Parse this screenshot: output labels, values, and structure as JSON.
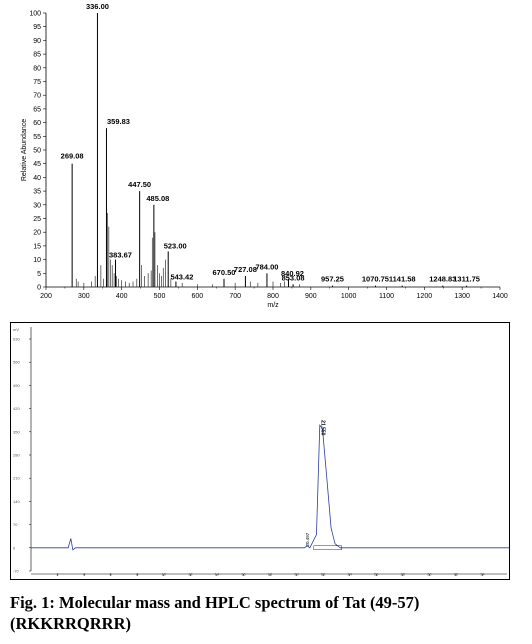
{
  "chart_data": [
    {
      "type": "bar",
      "xlabel": "m/z",
      "ylabel": "Relative Abundance",
      "xlim": [
        200,
        1400
      ],
      "ylim": [
        0,
        100
      ],
      "xticks": [
        "200",
        "300",
        "400",
        "500",
        "600",
        "700",
        "800",
        "900",
        "1000",
        "1100",
        "1200",
        "1300",
        "1400"
      ],
      "yticks": [
        "0",
        "5",
        "10",
        "15",
        "20",
        "25",
        "30",
        "35",
        "40",
        "45",
        "50",
        "55",
        "60",
        "65",
        "70",
        "75",
        "80",
        "85",
        "90",
        "95",
        "100"
      ],
      "peaks": [
        {
          "x": 269.08,
          "y": 45,
          "label": "269.08"
        },
        {
          "x": 336.0,
          "y": 100,
          "label": "336.00"
        },
        {
          "x": 359.83,
          "y": 58,
          "label": "359.83"
        },
        {
          "x": 383.67,
          "y": 10,
          "label": "383.67"
        },
        {
          "x": 447.5,
          "y": 35,
          "label": "447.50"
        },
        {
          "x": 485.08,
          "y": 30,
          "label": "485.08"
        },
        {
          "x": 523.0,
          "y": 13,
          "label": "523.00"
        },
        {
          "x": 543.42,
          "y": 2,
          "label": "543.42"
        },
        {
          "x": 670.5,
          "y": 3,
          "label": "670.50"
        },
        {
          "x": 727.08,
          "y": 4,
          "label": "727.08"
        },
        {
          "x": 784.0,
          "y": 5,
          "label": "784.00"
        },
        {
          "x": 840.92,
          "y": 3,
          "label": "840.92"
        },
        {
          "x": 853.08,
          "y": 1,
          "label": "853.08"
        },
        {
          "x": 957.25,
          "y": 0.5,
          "label": "957.25"
        },
        {
          "x": 1070.75,
          "y": 0.5,
          "label": "1070.75"
        },
        {
          "x": 1141.58,
          "y": 0.5,
          "label": "1141.58"
        },
        {
          "x": 1248.83,
          "y": 0.5,
          "label": "1248.83"
        },
        {
          "x": 1311.75,
          "y": 0.5,
          "label": "1311.75"
        }
      ],
      "minor_peaks": [
        [
          280,
          3
        ],
        [
          285,
          2
        ],
        [
          300,
          1.5
        ],
        [
          320,
          2
        ],
        [
          330,
          4
        ],
        [
          345,
          8
        ],
        [
          352,
          3
        ],
        [
          363,
          27
        ],
        [
          366,
          22
        ],
        [
          370,
          10
        ],
        [
          375,
          8
        ],
        [
          380,
          5
        ],
        [
          386,
          4
        ],
        [
          392,
          3
        ],
        [
          400,
          2.5
        ],
        [
          410,
          2
        ],
        [
          420,
          1.5
        ],
        [
          430,
          2
        ],
        [
          440,
          3
        ],
        [
          452,
          8
        ],
        [
          460,
          4
        ],
        [
          470,
          5
        ],
        [
          478,
          6
        ],
        [
          481,
          18
        ],
        [
          488,
          20
        ],
        [
          495,
          8
        ],
        [
          500,
          5
        ],
        [
          505,
          4
        ],
        [
          510,
          7
        ],
        [
          516,
          10
        ],
        [
          530,
          3
        ],
        [
          560,
          1.5
        ],
        [
          600,
          1
        ],
        [
          640,
          1
        ],
        [
          700,
          1.5
        ],
        [
          740,
          2
        ],
        [
          760,
          1.5
        ],
        [
          800,
          2
        ],
        [
          820,
          1.5
        ],
        [
          830,
          2
        ],
        [
          870,
          1
        ]
      ]
    },
    {
      "type": "line",
      "ylabel_unit": "mV",
      "xlim": [
        0,
        36
      ],
      "ylim": [
        -70,
        630
      ],
      "xticks": [
        "2",
        "4",
        "6",
        "8",
        "10",
        "12",
        "14",
        "16",
        "18",
        "20",
        "22",
        "24",
        "26",
        "28",
        "30",
        "32",
        "34"
      ],
      "yticks": [
        "-70",
        "0",
        "70",
        "140",
        "210",
        "280",
        "350",
        "420",
        "490",
        "560",
        "630"
      ],
      "peaks": [
        {
          "x": 20.8,
          "label": "20.497"
        },
        {
          "x": 21.9,
          "y": 370,
          "label": "21.550"
        }
      ],
      "baseline_y": 0
    }
  ],
  "caption": {
    "line1": "Fig. 1: Molecular mass and HPLC spectrum of Tat (49-57)",
    "line2": "(RKKRRQRRR)"
  }
}
